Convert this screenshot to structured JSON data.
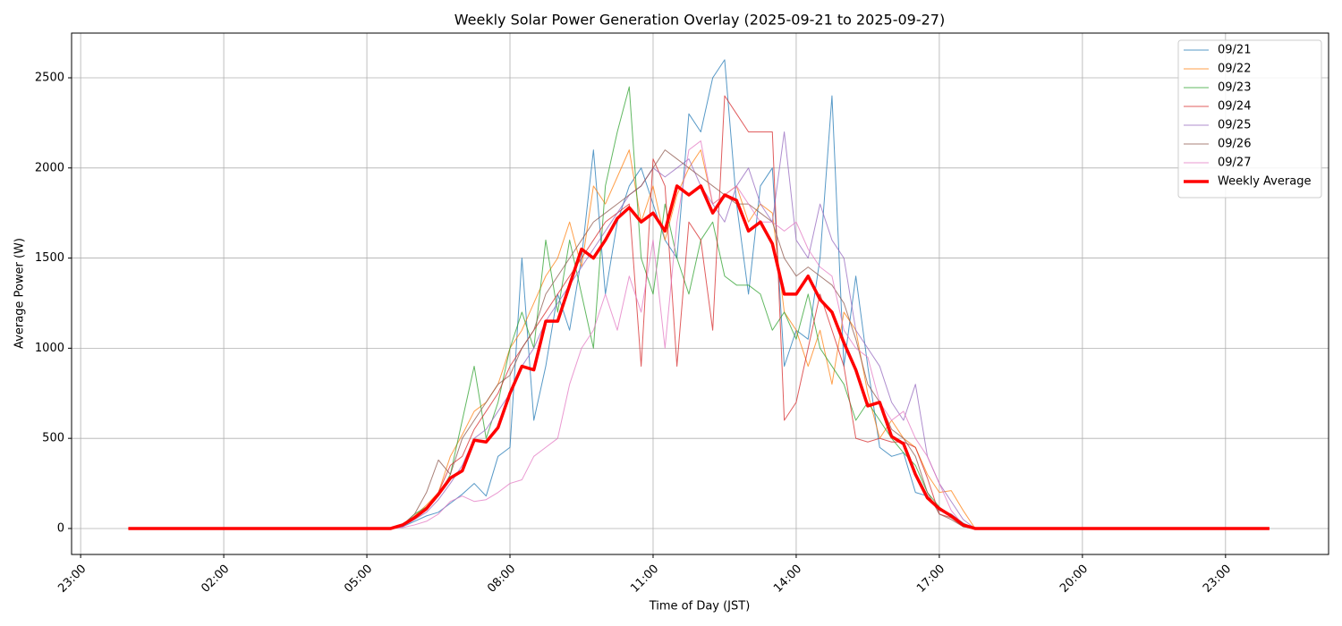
{
  "chart_data": {
    "type": "line",
    "title": "Weekly Solar Power Generation Overlay (2025-09-21 to 2025-09-27)",
    "x_label": "Time of Day (JST)",
    "y_label": "Average Power (W)",
    "x": [
      0,
      5.5,
      5.75,
      6,
      6.25,
      6.5,
      6.75,
      7,
      7.25,
      7.5,
      7.75,
      8,
      8.25,
      8.5,
      8.75,
      9,
      9.25,
      9.5,
      9.75,
      10,
      10.25,
      10.5,
      10.75,
      11,
      11.25,
      11.5,
      11.75,
      12,
      12.25,
      12.5,
      12.75,
      13,
      13.25,
      13.5,
      13.75,
      14,
      14.25,
      14.5,
      14.75,
      15,
      15.25,
      15.5,
      15.75,
      16,
      16.25,
      16.5,
      16.75,
      17,
      17.25,
      17.5,
      17.75,
      23.92
    ],
    "series": [
      {
        "name": "09/21",
        "color": "#1f77b4",
        "line_width": 1,
        "opacity": 0.75,
        "values": [
          0,
          0,
          10,
          40,
          70,
          90,
          140,
          190,
          250,
          180,
          400,
          450,
          1500,
          600,
          900,
          1300,
          1100,
          1500,
          2100,
          1300,
          1700,
          1900,
          2000,
          1800,
          1600,
          1500,
          2300,
          2200,
          2500,
          2600,
          1800,
          1300,
          1900,
          2000,
          900,
          1100,
          1050,
          1500,
          2400,
          900,
          1400,
          900,
          450,
          400,
          420,
          200,
          180,
          100,
          80,
          30,
          0,
          0
        ]
      },
      {
        "name": "09/22",
        "color": "#ff7f0e",
        "line_width": 1,
        "opacity": 0.75,
        "values": [
          0,
          0,
          15,
          70,
          130,
          200,
          400,
          520,
          650,
          700,
          800,
          1000,
          1100,
          1250,
          1400,
          1500,
          1700,
          1450,
          1900,
          1800,
          1950,
          2100,
          1700,
          1900,
          1600,
          1850,
          2000,
          2100,
          1800,
          1850,
          1900,
          1700,
          1800,
          1750,
          1200,
          1100,
          900,
          1100,
          800,
          1200,
          1100,
          750,
          500,
          600,
          500,
          450,
          300,
          200,
          210,
          100,
          0,
          0
        ]
      },
      {
        "name": "09/23",
        "color": "#2ca02c",
        "line_width": 1,
        "opacity": 0.75,
        "values": [
          0,
          0,
          20,
          80,
          120,
          180,
          300,
          600,
          900,
          500,
          700,
          1000,
          1200,
          1000,
          1600,
          1200,
          1600,
          1300,
          1000,
          1900,
          2200,
          2450,
          1500,
          1300,
          1800,
          1500,
          1300,
          1600,
          1700,
          1400,
          1350,
          1350,
          1300,
          1100,
          1200,
          1050,
          1300,
          1000,
          900,
          800,
          600,
          700,
          600,
          500,
          420,
          350,
          200,
          120,
          60,
          20,
          0,
          0
        ]
      },
      {
        "name": "09/24",
        "color": "#d62728",
        "line_width": 1,
        "opacity": 0.75,
        "values": [
          0,
          0,
          15,
          60,
          110,
          200,
          350,
          400,
          550,
          650,
          750,
          900,
          1000,
          1100,
          1200,
          1300,
          1400,
          1500,
          1600,
          1700,
          1750,
          1800,
          900,
          2050,
          1900,
          900,
          1700,
          1600,
          1100,
          2400,
          2300,
          2200,
          2200,
          2200,
          600,
          700,
          1000,
          1300,
          1100,
          900,
          500,
          480,
          500,
          480,
          480,
          450,
          280,
          80,
          60,
          10,
          0,
          0
        ]
      },
      {
        "name": "09/25",
        "color": "#9467bd",
        "line_width": 1,
        "opacity": 0.75,
        "values": [
          0,
          0,
          10,
          50,
          90,
          160,
          250,
          350,
          500,
          550,
          650,
          750,
          900,
          1000,
          1150,
          1250,
          1350,
          1450,
          1550,
          1650,
          1750,
          1850,
          1900,
          2000,
          1950,
          2000,
          2050,
          1900,
          1800,
          1700,
          1900,
          2000,
          1800,
          1700,
          2200,
          1600,
          1500,
          1800,
          1600,
          1500,
          1100,
          1000,
          900,
          700,
          600,
          800,
          400,
          250,
          150,
          50,
          0,
          0
        ]
      },
      {
        "name": "09/26",
        "color": "#8c564b",
        "line_width": 1,
        "opacity": 0.75,
        "values": [
          0,
          0,
          20,
          80,
          200,
          380,
          300,
          500,
          600,
          700,
          800,
          850,
          1000,
          1100,
          1300,
          1400,
          1500,
          1600,
          1700,
          1750,
          1800,
          1850,
          1900,
          2000,
          2100,
          2050,
          2000,
          1950,
          1900,
          1850,
          1800,
          1800,
          1750,
          1700,
          1500,
          1400,
          1450,
          1400,
          1350,
          1250,
          1050,
          800,
          700,
          550,
          500,
          400,
          200,
          80,
          50,
          10,
          0,
          0
        ]
      },
      {
        "name": "09/27",
        "color": "#e377c2",
        "line_width": 1,
        "opacity": 0.75,
        "values": [
          0,
          0,
          5,
          20,
          40,
          80,
          150,
          180,
          150,
          160,
          200,
          250,
          270,
          400,
          450,
          500,
          800,
          1000,
          1100,
          1300,
          1100,
          1400,
          1200,
          1600,
          1000,
          1700,
          2100,
          2150,
          1800,
          1850,
          1900,
          1800,
          1700,
          1700,
          1650,
          1700,
          1550,
          1450,
          1400,
          1100,
          1000,
          950,
          700,
          600,
          650,
          500,
          400,
          250,
          100,
          20,
          0,
          0
        ]
      },
      {
        "name": "Weekly Average",
        "color": "#ff0000",
        "line_width": 3.5,
        "opacity": 1,
        "values": [
          0,
          0,
          20,
          60,
          110,
          190,
          280,
          320,
          490,
          480,
          560,
          750,
          900,
          880,
          1150,
          1150,
          1350,
          1550,
          1500,
          1600,
          1720,
          1780,
          1700,
          1750,
          1650,
          1900,
          1850,
          1900,
          1750,
          1850,
          1820,
          1650,
          1700,
          1580,
          1300,
          1300,
          1400,
          1270,
          1200,
          1030,
          880,
          680,
          700,
          510,
          470,
          300,
          170,
          110,
          70,
          20,
          0,
          0
        ]
      }
    ],
    "xlim": [
      -1.19,
      25.16
    ],
    "xticks": [
      {
        "value": -1,
        "label": "23:00"
      },
      {
        "value": 2,
        "label": "02:00"
      },
      {
        "value": 5,
        "label": "05:00"
      },
      {
        "value": 8,
        "label": "08:00"
      },
      {
        "value": 11,
        "label": "11:00"
      },
      {
        "value": 14,
        "label": "14:00"
      },
      {
        "value": 17,
        "label": "17:00"
      },
      {
        "value": 20,
        "label": "20:00"
      },
      {
        "value": 23,
        "label": "23:00"
      }
    ],
    "ylim": [
      -144,
      2748
    ],
    "yticks": [
      0,
      500,
      1000,
      1500,
      2000,
      2500
    ],
    "grid": true,
    "legend": "upper-right"
  }
}
